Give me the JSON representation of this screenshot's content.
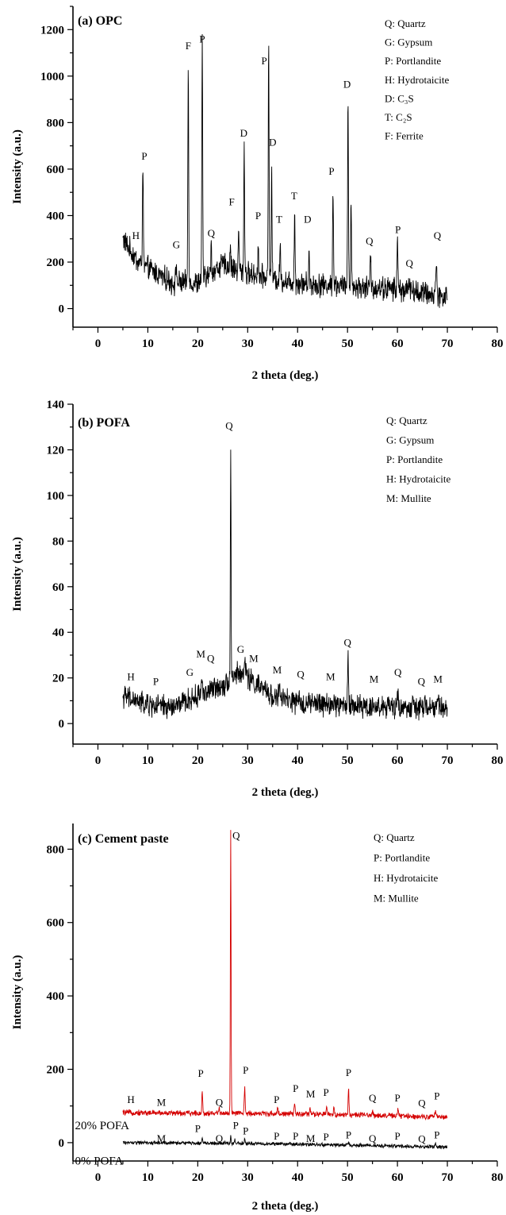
{
  "chart_data": [
    {
      "type": "line",
      "title": "(a) OPC",
      "xlabel": "2 theta (deg.)",
      "ylabel": "Intensity (a.u.)",
      "xlim": [
        -5,
        80
      ],
      "ylim": [
        -80,
        1300
      ],
      "xticks": [
        0,
        10,
        20,
        30,
        40,
        50,
        60,
        70,
        80
      ],
      "yticks": [
        0,
        200,
        400,
        600,
        800,
        1000,
        1200
      ],
      "legend": [
        "Q: Quartz",
        "G: Gypsum",
        "P: Portlandite",
        "H: Hydrotaicite",
        "D: C₃S",
        "T: C₂S",
        "F: Ferrite"
      ],
      "legend_position": "top-right",
      "series": [
        {
          "color": "#000000",
          "x_range": [
            5,
            70
          ],
          "baseline": [
            [
              5,
              300
            ],
            [
              8,
              200
            ],
            [
              15,
              110
            ],
            [
              20,
              110
            ],
            [
              25,
              190
            ],
            [
              30,
              150
            ],
            [
              40,
              110
            ],
            [
              50,
              95
            ],
            [
              60,
              85
            ],
            [
              70,
              50
            ]
          ],
          "noise": 40,
          "peaks": [
            [
              9.0,
              440,
              0.12
            ],
            [
              15.7,
              90,
              0.12
            ],
            [
              18.1,
              940,
              0.12
            ],
            [
              20.9,
              1010,
              0.12
            ],
            [
              22.7,
              120,
              0.12
            ],
            [
              26.5,
              90,
              0.12
            ],
            [
              28.2,
              170,
              0.12
            ],
            [
              29.3,
              540,
              0.12
            ],
            [
              32.1,
              130,
              0.12
            ],
            [
              34.2,
              990,
              0.12
            ],
            [
              34.8,
              440,
              0.12
            ],
            [
              36.5,
              150,
              0.12
            ],
            [
              39.4,
              310,
              0.12
            ],
            [
              42.3,
              130,
              0.12
            ],
            [
              47.1,
              430,
              0.12
            ],
            [
              50.1,
              810,
              0.12
            ],
            [
              50.7,
              360,
              0.12
            ],
            [
              54.6,
              140,
              0.12
            ],
            [
              60.0,
              220,
              0.12
            ],
            [
              62.4,
              60,
              0.12
            ],
            [
              67.8,
              180,
              0.12
            ]
          ]
        }
      ],
      "annotations": [
        {
          "text": "H",
          "x": 7.6,
          "y": 300
        },
        {
          "text": "P",
          "x": 9.3,
          "y": 640
        },
        {
          "text": "G",
          "x": 15.7,
          "y": 260
        },
        {
          "text": "F",
          "x": 18.1,
          "y": 1115
        },
        {
          "text": "P",
          "x": 20.9,
          "y": 1145
        },
        {
          "text": "Q",
          "x": 22.7,
          "y": 310
        },
        {
          "text": "F",
          "x": 26.8,
          "y": 445
        },
        {
          "text": "D",
          "x": 29.2,
          "y": 740
        },
        {
          "text": "P",
          "x": 32.1,
          "y": 385
        },
        {
          "text": "P",
          "x": 33.3,
          "y": 1050
        },
        {
          "text": "D",
          "x": 35.0,
          "y": 700
        },
        {
          "text": "T",
          "x": 36.3,
          "y": 370
        },
        {
          "text": "T",
          "x": 39.3,
          "y": 470
        },
        {
          "text": "D",
          "x": 42.0,
          "y": 370
        },
        {
          "text": "P",
          "x": 46.8,
          "y": 575
        },
        {
          "text": "D",
          "x": 49.9,
          "y": 950
        },
        {
          "text": "Q",
          "x": 54.4,
          "y": 275
        },
        {
          "text": "P",
          "x": 60.1,
          "y": 325
        },
        {
          "text": "Q",
          "x": 62.4,
          "y": 180
        },
        {
          "text": "Q",
          "x": 68.0,
          "y": 300
        }
      ]
    },
    {
      "type": "line",
      "title": "(b) POFA",
      "xlabel": "2 theta (deg.)",
      "ylabel": "Intensity (a.u.)",
      "xlim": [
        -5,
        80
      ],
      "ylim": [
        -9,
        140
      ],
      "xticks": [
        0,
        10,
        20,
        30,
        40,
        50,
        60,
        70,
        80
      ],
      "yticks": [
        0,
        20,
        40,
        60,
        80,
        100,
        120,
        140
      ],
      "legend": [
        "Q: Quartz",
        "G: Gypsum",
        "P: Portlandite",
        "H: Hydrotaicite",
        "M: Mullite"
      ],
      "legend_position": "top-right",
      "series": [
        {
          "color": "#000000",
          "x_range": [
            5,
            70
          ],
          "baseline": [
            [
              5,
              12
            ],
            [
              10,
              8
            ],
            [
              15,
              7
            ],
            [
              20,
              12
            ],
            [
              25,
              17
            ],
            [
              28,
              22
            ],
            [
              30,
              20
            ],
            [
              35,
              12
            ],
            [
              40,
              9
            ],
            [
              50,
              8
            ],
            [
              60,
              7
            ],
            [
              70,
              7
            ]
          ],
          "noise": 4,
          "peaks": [
            [
              20.8,
              9,
              0.15
            ],
            [
              26.6,
              104,
              0.1
            ],
            [
              29.5,
              8,
              0.2
            ],
            [
              36.4,
              4,
              0.2
            ],
            [
              50.1,
              22,
              0.12
            ],
            [
              60.1,
              7,
              0.15
            ],
            [
              68.2,
              5,
              0.15
            ]
          ]
        }
      ],
      "annotations": [
        {
          "text": "H",
          "x": 6.6,
          "y": 19
        },
        {
          "text": "P",
          "x": 11.6,
          "y": 17
        },
        {
          "text": "G",
          "x": 18.4,
          "y": 21
        },
        {
          "text": "M",
          "x": 20.6,
          "y": 29
        },
        {
          "text": "Q",
          "x": 22.6,
          "y": 27
        },
        {
          "text": "Q",
          "x": 26.3,
          "y": 129
        },
        {
          "text": "G",
          "x": 28.6,
          "y": 31
        },
        {
          "text": "M",
          "x": 31.2,
          "y": 27
        },
        {
          "text": "M",
          "x": 35.9,
          "y": 22
        },
        {
          "text": "Q",
          "x": 40.6,
          "y": 20
        },
        {
          "text": "M",
          "x": 46.6,
          "y": 19
        },
        {
          "text": "Q",
          "x": 50.0,
          "y": 34
        },
        {
          "text": "M",
          "x": 55.3,
          "y": 18
        },
        {
          "text": "Q",
          "x": 60.1,
          "y": 21
        },
        {
          "text": "Q",
          "x": 64.8,
          "y": 17
        },
        {
          "text": "M",
          "x": 68.1,
          "y": 18
        }
      ]
    },
    {
      "type": "line",
      "title": "(c) Cement paste",
      "xlabel": "2 theta (deg.)",
      "ylabel": "Intensity (a.u.)",
      "xlim": [
        -5,
        80
      ],
      "ylim": [
        -50,
        870
      ],
      "xticks": [
        0,
        10,
        20,
        30,
        40,
        50,
        60,
        70,
        80
      ],
      "yticks": [
        0,
        200,
        400,
        600,
        800
      ],
      "legend": [
        "Q: Quartz",
        "P: Portlandite",
        "H: Hydrotaicite",
        "M: Mullite"
      ],
      "legend_position": "top-right",
      "series": [
        {
          "name": "20% POFA",
          "color": "#d40000",
          "x_range": [
            5,
            70
          ],
          "baseline": [
            [
              5,
              82
            ],
            [
              20,
              80
            ],
            [
              30,
              80
            ],
            [
              50,
              76
            ],
            [
              70,
              70
            ]
          ],
          "noise": 6,
          "peaks": [
            [
              20.9,
              60,
              0.12
            ],
            [
              24.3,
              20,
              0.12
            ],
            [
              26.6,
              775,
              0.1
            ],
            [
              29.4,
              70,
              0.12
            ],
            [
              36.0,
              15,
              0.15
            ],
            [
              39.4,
              30,
              0.12
            ],
            [
              42.5,
              15,
              0.15
            ],
            [
              45.8,
              25,
              0.12
            ],
            [
              47.3,
              18,
              0.15
            ],
            [
              50.2,
              75,
              0.12
            ],
            [
              55.0,
              12,
              0.15
            ],
            [
              60.1,
              15,
              0.15
            ],
            [
              67.6,
              15,
              0.15
            ]
          ]
        },
        {
          "name": "0% POFA",
          "color": "#000000",
          "x_range": [
            5,
            70
          ],
          "baseline": [
            [
              5,
              0
            ],
            [
              30,
              -2
            ],
            [
              70,
              -12
            ]
          ],
          "noise": 4,
          "peaks": [
            [
              20.9,
              12,
              0.12
            ],
            [
              26.6,
              20,
              0.1
            ],
            [
              27.4,
              12,
              0.1
            ],
            [
              29.4,
              10,
              0.12
            ],
            [
              50.2,
              8,
              0.15
            ],
            [
              67.6,
              8,
              0.15
            ]
          ]
        }
      ],
      "series_labels": [
        {
          "text": "20% POFA",
          "x": -4.6,
          "y": 37
        },
        {
          "text": "0% POFA",
          "x": -4.6,
          "y": -60
        }
      ],
      "annotations": [
        {
          "text": "H",
          "x": 6.6,
          "y": 108
        },
        {
          "text": "M",
          "x": 12.7,
          "y": 100
        },
        {
          "text": "P",
          "x": 20.6,
          "y": 180
        },
        {
          "text": "Q",
          "x": 24.3,
          "y": 100
        },
        {
          "text": "Q",
          "x": 27.7,
          "y": 828
        },
        {
          "text": "P",
          "x": 29.6,
          "y": 188
        },
        {
          "text": "P",
          "x": 35.8,
          "y": 108
        },
        {
          "text": "P",
          "x": 39.6,
          "y": 138
        },
        {
          "text": "M",
          "x": 42.6,
          "y": 123
        },
        {
          "text": "P",
          "x": 45.7,
          "y": 127
        },
        {
          "text": "P",
          "x": 50.2,
          "y": 182
        },
        {
          "text": "Q",
          "x": 55.0,
          "y": 112
        },
        {
          "text": "P",
          "x": 60.0,
          "y": 112
        },
        {
          "text": "Q",
          "x": 64.9,
          "y": 98
        },
        {
          "text": "P",
          "x": 67.9,
          "y": 118
        },
        {
          "text": "M",
          "x": 12.7,
          "y": 2
        },
        {
          "text": "P",
          "x": 20.0,
          "y": 29
        },
        {
          "text": "Q",
          "x": 24.3,
          "y": 2
        },
        {
          "text": "P",
          "x": 27.6,
          "y": 38
        },
        {
          "text": "P",
          "x": 29.6,
          "y": 23
        },
        {
          "text": "P",
          "x": 35.8,
          "y": 8
        },
        {
          "text": "P",
          "x": 39.6,
          "y": 8
        },
        {
          "text": "M",
          "x": 42.6,
          "y": 2
        },
        {
          "text": "P",
          "x": 45.7,
          "y": 6
        },
        {
          "text": "P",
          "x": 50.2,
          "y": 12
        },
        {
          "text": "Q",
          "x": 55.0,
          "y": 2
        },
        {
          "text": "P",
          "x": 60.0,
          "y": 8
        },
        {
          "text": "Q",
          "x": 64.9,
          "y": 1
        },
        {
          "text": "P",
          "x": 67.9,
          "y": 12
        }
      ]
    }
  ]
}
